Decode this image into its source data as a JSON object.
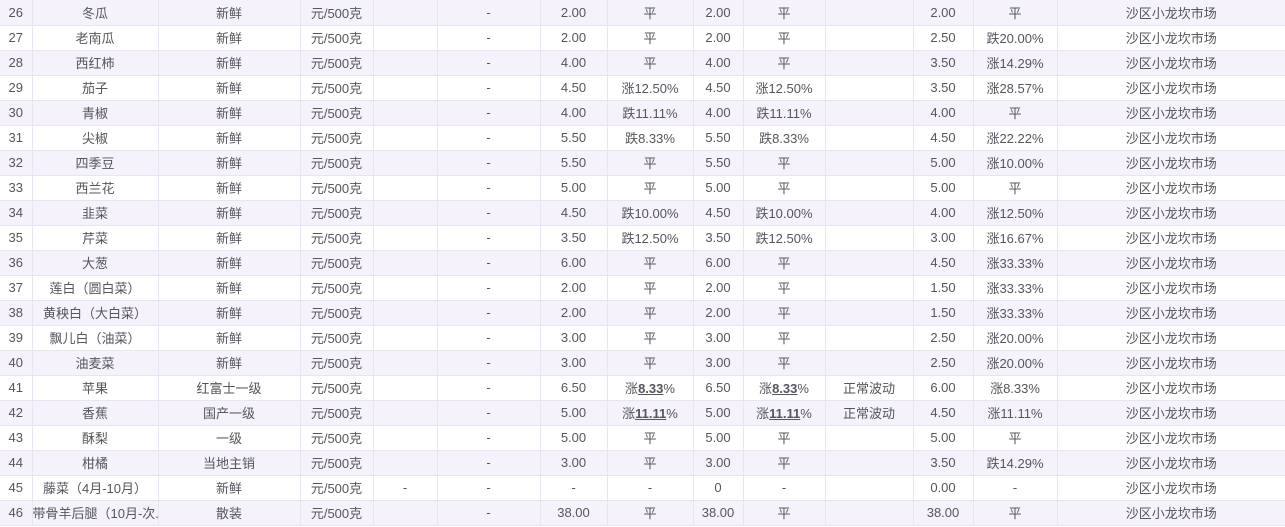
{
  "colors": {
    "rise": "#ff2d2d",
    "fall": "#16a054",
    "text": "#55555e",
    "alt": "#f6f2fb",
    "border": "#e8e4f1"
  },
  "table": {
    "rows": [
      {
        "num": "26",
        "name": "冬瓜",
        "spec": "新鲜",
        "unit": "元/500克",
        "reserved": "",
        "dash": "-",
        "price1": "2.00",
        "change1": {
          "t": "平",
          "d": "flat"
        },
        "price2": "2.00",
        "change2": {
          "t": "平",
          "d": "flat"
        },
        "status": "",
        "price3": "2.00",
        "change3": {
          "t": "平",
          "d": "flat"
        },
        "market": "沙区小龙坎市场"
      },
      {
        "num": "27",
        "name": "老南瓜",
        "spec": "新鲜",
        "unit": "元/500克",
        "reserved": "",
        "dash": "-",
        "price1": "2.00",
        "change1": {
          "t": "平",
          "d": "flat"
        },
        "price2": "2.00",
        "change2": {
          "t": "平",
          "d": "flat"
        },
        "status": "",
        "price3": "2.50",
        "change3": {
          "t": "跌20.00%",
          "d": "down"
        },
        "market": "沙区小龙坎市场"
      },
      {
        "num": "28",
        "name": "西红柿",
        "spec": "新鲜",
        "unit": "元/500克",
        "reserved": "",
        "dash": "-",
        "price1": "4.00",
        "change1": {
          "t": "平",
          "d": "flat"
        },
        "price2": "4.00",
        "change2": {
          "t": "平",
          "d": "flat"
        },
        "status": "",
        "price3": "3.50",
        "change3": {
          "t": "涨14.29%",
          "d": "up"
        },
        "market": "沙区小龙坎市场"
      },
      {
        "num": "29",
        "name": "茄子",
        "spec": "新鲜",
        "unit": "元/500克",
        "reserved": "",
        "dash": "-",
        "price1": "4.50",
        "change1": {
          "t": "涨12.50%",
          "d": "up"
        },
        "price2": "4.50",
        "change2": {
          "t": "涨12.50%",
          "d": "up"
        },
        "status": "",
        "price3": "3.50",
        "change3": {
          "t": "涨28.57%",
          "d": "up"
        },
        "market": "沙区小龙坎市场"
      },
      {
        "num": "30",
        "name": "青椒",
        "spec": "新鲜",
        "unit": "元/500克",
        "reserved": "",
        "dash": "-",
        "price1": "4.00",
        "change1": {
          "t": "跌11.11%",
          "d": "down"
        },
        "price2": "4.00",
        "change2": {
          "t": "跌11.11%",
          "d": "down"
        },
        "status": "",
        "price3": "4.00",
        "change3": {
          "t": "平",
          "d": "flat"
        },
        "market": "沙区小龙坎市场"
      },
      {
        "num": "31",
        "name": "尖椒",
        "spec": "新鲜",
        "unit": "元/500克",
        "reserved": "",
        "dash": "-",
        "price1": "5.50",
        "change1": {
          "t": "跌8.33%",
          "d": "down"
        },
        "price2": "5.50",
        "change2": {
          "t": "跌8.33%",
          "d": "down"
        },
        "status": "",
        "price3": "4.50",
        "change3": {
          "t": "涨22.22%",
          "d": "up"
        },
        "market": "沙区小龙坎市场"
      },
      {
        "num": "32",
        "name": "四季豆",
        "spec": "新鲜",
        "unit": "元/500克",
        "reserved": "",
        "dash": "-",
        "price1": "5.50",
        "change1": {
          "t": "平",
          "d": "flat"
        },
        "price2": "5.50",
        "change2": {
          "t": "平",
          "d": "flat"
        },
        "status": "",
        "price3": "5.00",
        "change3": {
          "t": "涨10.00%",
          "d": "up"
        },
        "market": "沙区小龙坎市场"
      },
      {
        "num": "33",
        "name": "西兰花",
        "spec": "新鲜",
        "unit": "元/500克",
        "reserved": "",
        "dash": "-",
        "price1": "5.00",
        "change1": {
          "t": "平",
          "d": "flat"
        },
        "price2": "5.00",
        "change2": {
          "t": "平",
          "d": "flat"
        },
        "status": "",
        "price3": "5.00",
        "change3": {
          "t": "平",
          "d": "flat"
        },
        "market": "沙区小龙坎市场"
      },
      {
        "num": "34",
        "name": "韭菜",
        "spec": "新鲜",
        "unit": "元/500克",
        "reserved": "",
        "dash": "-",
        "price1": "4.50",
        "change1": {
          "t": "跌10.00%",
          "d": "down"
        },
        "price2": "4.50",
        "change2": {
          "t": "跌10.00%",
          "d": "down"
        },
        "status": "",
        "price3": "4.00",
        "change3": {
          "t": "涨12.50%",
          "d": "up"
        },
        "market": "沙区小龙坎市场"
      },
      {
        "num": "35",
        "name": "芹菜",
        "spec": "新鲜",
        "unit": "元/500克",
        "reserved": "",
        "dash": "-",
        "price1": "3.50",
        "change1": {
          "t": "跌12.50%",
          "d": "down"
        },
        "price2": "3.50",
        "change2": {
          "t": "跌12.50%",
          "d": "down"
        },
        "status": "",
        "price3": "3.00",
        "change3": {
          "t": "涨16.67%",
          "d": "up"
        },
        "market": "沙区小龙坎市场"
      },
      {
        "num": "36",
        "name": "大葱",
        "spec": "新鲜",
        "unit": "元/500克",
        "reserved": "",
        "dash": "-",
        "price1": "6.00",
        "change1": {
          "t": "平",
          "d": "flat"
        },
        "price2": "6.00",
        "change2": {
          "t": "平",
          "d": "flat"
        },
        "status": "",
        "price3": "4.50",
        "change3": {
          "t": "涨33.33%",
          "d": "up"
        },
        "market": "沙区小龙坎市场"
      },
      {
        "num": "37",
        "name": "莲白（圆白菜）",
        "spec": "新鲜",
        "unit": "元/500克",
        "reserved": "",
        "dash": "-",
        "price1": "2.00",
        "change1": {
          "t": "平",
          "d": "flat"
        },
        "price2": "2.00",
        "change2": {
          "t": "平",
          "d": "flat"
        },
        "status": "",
        "price3": "1.50",
        "change3": {
          "t": "涨33.33%",
          "d": "up"
        },
        "market": "沙区小龙坎市场"
      },
      {
        "num": "38",
        "name": "黄秧白（大白菜）",
        "spec": "新鲜",
        "unit": "元/500克",
        "reserved": "",
        "dash": "-",
        "price1": "2.00",
        "change1": {
          "t": "平",
          "d": "flat"
        },
        "price2": "2.00",
        "change2": {
          "t": "平",
          "d": "flat"
        },
        "status": "",
        "price3": "1.50",
        "change3": {
          "t": "涨33.33%",
          "d": "up"
        },
        "market": "沙区小龙坎市场"
      },
      {
        "num": "39",
        "name": "飘儿白（油菜）",
        "spec": "新鲜",
        "unit": "元/500克",
        "reserved": "",
        "dash": "-",
        "price1": "3.00",
        "change1": {
          "t": "平",
          "d": "flat"
        },
        "price2": "3.00",
        "change2": {
          "t": "平",
          "d": "flat"
        },
        "status": "",
        "price3": "2.50",
        "change3": {
          "t": "涨20.00%",
          "d": "up"
        },
        "market": "沙区小龙坎市场"
      },
      {
        "num": "40",
        "name": "油麦菜",
        "spec": "新鲜",
        "unit": "元/500克",
        "reserved": "",
        "dash": "-",
        "price1": "3.00",
        "change1": {
          "t": "平",
          "d": "flat"
        },
        "price2": "3.00",
        "change2": {
          "t": "平",
          "d": "flat"
        },
        "status": "",
        "price3": "2.50",
        "change3": {
          "t": "涨20.00%",
          "d": "up"
        },
        "market": "沙区小龙坎市场"
      },
      {
        "num": "41",
        "name": "苹果",
        "spec": "红富士一级",
        "unit": "元/500克",
        "reserved": "",
        "dash": "-",
        "price1": "6.50",
        "change1": {
          "t": "涨8.33%",
          "d": "up",
          "flag": true
        },
        "price2": "6.50",
        "change2": {
          "t": "涨8.33%",
          "d": "up",
          "flag": true
        },
        "status": "正常波动",
        "price3": "6.00",
        "change3": {
          "t": "涨8.33%",
          "d": "up"
        },
        "market": "沙区小龙坎市场"
      },
      {
        "num": "42",
        "name": "香蕉",
        "spec": "国产一级",
        "unit": "元/500克",
        "reserved": "",
        "dash": "-",
        "price1": "5.00",
        "change1": {
          "t": "涨11.11%",
          "d": "up",
          "flag": true
        },
        "price2": "5.00",
        "change2": {
          "t": "涨11.11%",
          "d": "up",
          "flag": true
        },
        "status": "正常波动",
        "price3": "4.50",
        "change3": {
          "t": "涨11.11%",
          "d": "up"
        },
        "market": "沙区小龙坎市场"
      },
      {
        "num": "43",
        "name": "酥梨",
        "spec": "一级",
        "unit": "元/500克",
        "reserved": "",
        "dash": "-",
        "price1": "5.00",
        "change1": {
          "t": "平",
          "d": "flat"
        },
        "price2": "5.00",
        "change2": {
          "t": "平",
          "d": "flat"
        },
        "status": "",
        "price3": "5.00",
        "change3": {
          "t": "平",
          "d": "flat"
        },
        "market": "沙区小龙坎市场"
      },
      {
        "num": "44",
        "name": "柑橘",
        "spec": "当地主销",
        "unit": "元/500克",
        "reserved": "",
        "dash": "-",
        "price1": "3.00",
        "change1": {
          "t": "平",
          "d": "flat"
        },
        "price2": "3.00",
        "change2": {
          "t": "平",
          "d": "flat"
        },
        "status": "",
        "price3": "3.50",
        "change3": {
          "t": "跌14.29%",
          "d": "down"
        },
        "market": "沙区小龙坎市场"
      },
      {
        "num": "45",
        "name": "藤菜（4月-10月）",
        "spec": "新鲜",
        "unit": "元/500克",
        "reserved": "-",
        "dash": "-",
        "price1": "-",
        "change1": {
          "t": "-",
          "d": "none"
        },
        "price2": "0",
        "change2": {
          "t": "-",
          "d": "none"
        },
        "status": "",
        "price3": "0.00",
        "change3": {
          "t": "-",
          "d": "none"
        },
        "market": "沙区小龙坎市场"
      },
      {
        "num": "46",
        "name": "带骨羊后腿（10月-次...",
        "spec": "散装",
        "unit": "元/500克",
        "reserved": "",
        "dash": "-",
        "price1": "38.00",
        "change1": {
          "t": "平",
          "d": "flat"
        },
        "price2": "38.00",
        "change2": {
          "t": "平",
          "d": "flat"
        },
        "status": "",
        "price3": "38.00",
        "change3": {
          "t": "平",
          "d": "flat"
        },
        "market": "沙区小龙坎市场"
      }
    ]
  }
}
